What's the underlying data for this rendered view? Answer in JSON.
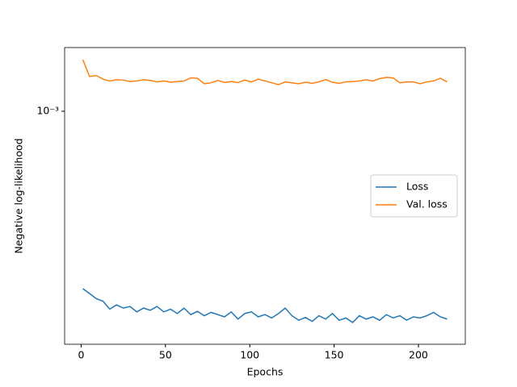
{
  "chart_data": {
    "type": "line",
    "xlabel": "Epochs",
    "ylabel": "Negative log-likelihood",
    "yscale": "log",
    "legend": "center right",
    "xlim": [
      -9.8,
      227.8
    ],
    "xticks": [
      0,
      50,
      100,
      150,
      200
    ],
    "ylim": [
      0.00033,
      0.001354
    ],
    "yticks": [
      {
        "value": 0.001,
        "label": "10⁻³"
      }
    ],
    "x": [
      1,
      5,
      9,
      13,
      17,
      21,
      25,
      29,
      33,
      37,
      41,
      45,
      49,
      53,
      57,
      61,
      65,
      69,
      73,
      77,
      81,
      85,
      89,
      93,
      97,
      101,
      105,
      109,
      113,
      117,
      121,
      125,
      129,
      133,
      137,
      141,
      145,
      149,
      153,
      157,
      161,
      165,
      169,
      173,
      177,
      181,
      185,
      189,
      193,
      197,
      201,
      205,
      209,
      213,
      217
    ],
    "series": [
      {
        "name": "Loss",
        "color": "#1f77b4",
        "values": [
          0.00043,
          0.00042,
          0.00041,
          0.000405,
          0.00039,
          0.000398,
          0.000392,
          0.000395,
          0.000385,
          0.000392,
          0.000388,
          0.000395,
          0.000385,
          0.00039,
          0.000382,
          0.000392,
          0.00038,
          0.000386,
          0.000378,
          0.000384,
          0.00038,
          0.000376,
          0.000385,
          0.000372,
          0.000382,
          0.000385,
          0.000376,
          0.00038,
          0.000374,
          0.000382,
          0.000392,
          0.000378,
          0.00037,
          0.000375,
          0.000368,
          0.000378,
          0.000372,
          0.000382,
          0.00037,
          0.000374,
          0.000366,
          0.000378,
          0.000372,
          0.000376,
          0.00037,
          0.00038,
          0.000374,
          0.000378,
          0.00037,
          0.000376,
          0.000374,
          0.000378,
          0.000384,
          0.000376,
          0.000372
        ]
      },
      {
        "name": "Val. loss",
        "color": "#ff7f0e",
        "values": [
          0.001278,
          0.00118,
          0.001185,
          0.001165,
          0.001155,
          0.001162,
          0.00116,
          0.001152,
          0.001155,
          0.001162,
          0.001158,
          0.00115,
          0.001155,
          0.001148,
          0.001152,
          0.001155,
          0.001172,
          0.00117,
          0.00114,
          0.001145,
          0.001158,
          0.001147,
          0.001152,
          0.001146,
          0.00116,
          0.00115,
          0.001165,
          0.001155,
          0.001145,
          0.001135,
          0.00115,
          0.001145,
          0.00114,
          0.001148,
          0.001142,
          0.00115,
          0.001163,
          0.001148,
          0.001142,
          0.00115,
          0.001152,
          0.001155,
          0.001162,
          0.001155,
          0.001168,
          0.001175,
          0.001172,
          0.001145,
          0.00115,
          0.00115,
          0.00114,
          0.00115,
          0.001155,
          0.00117,
          0.00115
        ]
      }
    ]
  }
}
